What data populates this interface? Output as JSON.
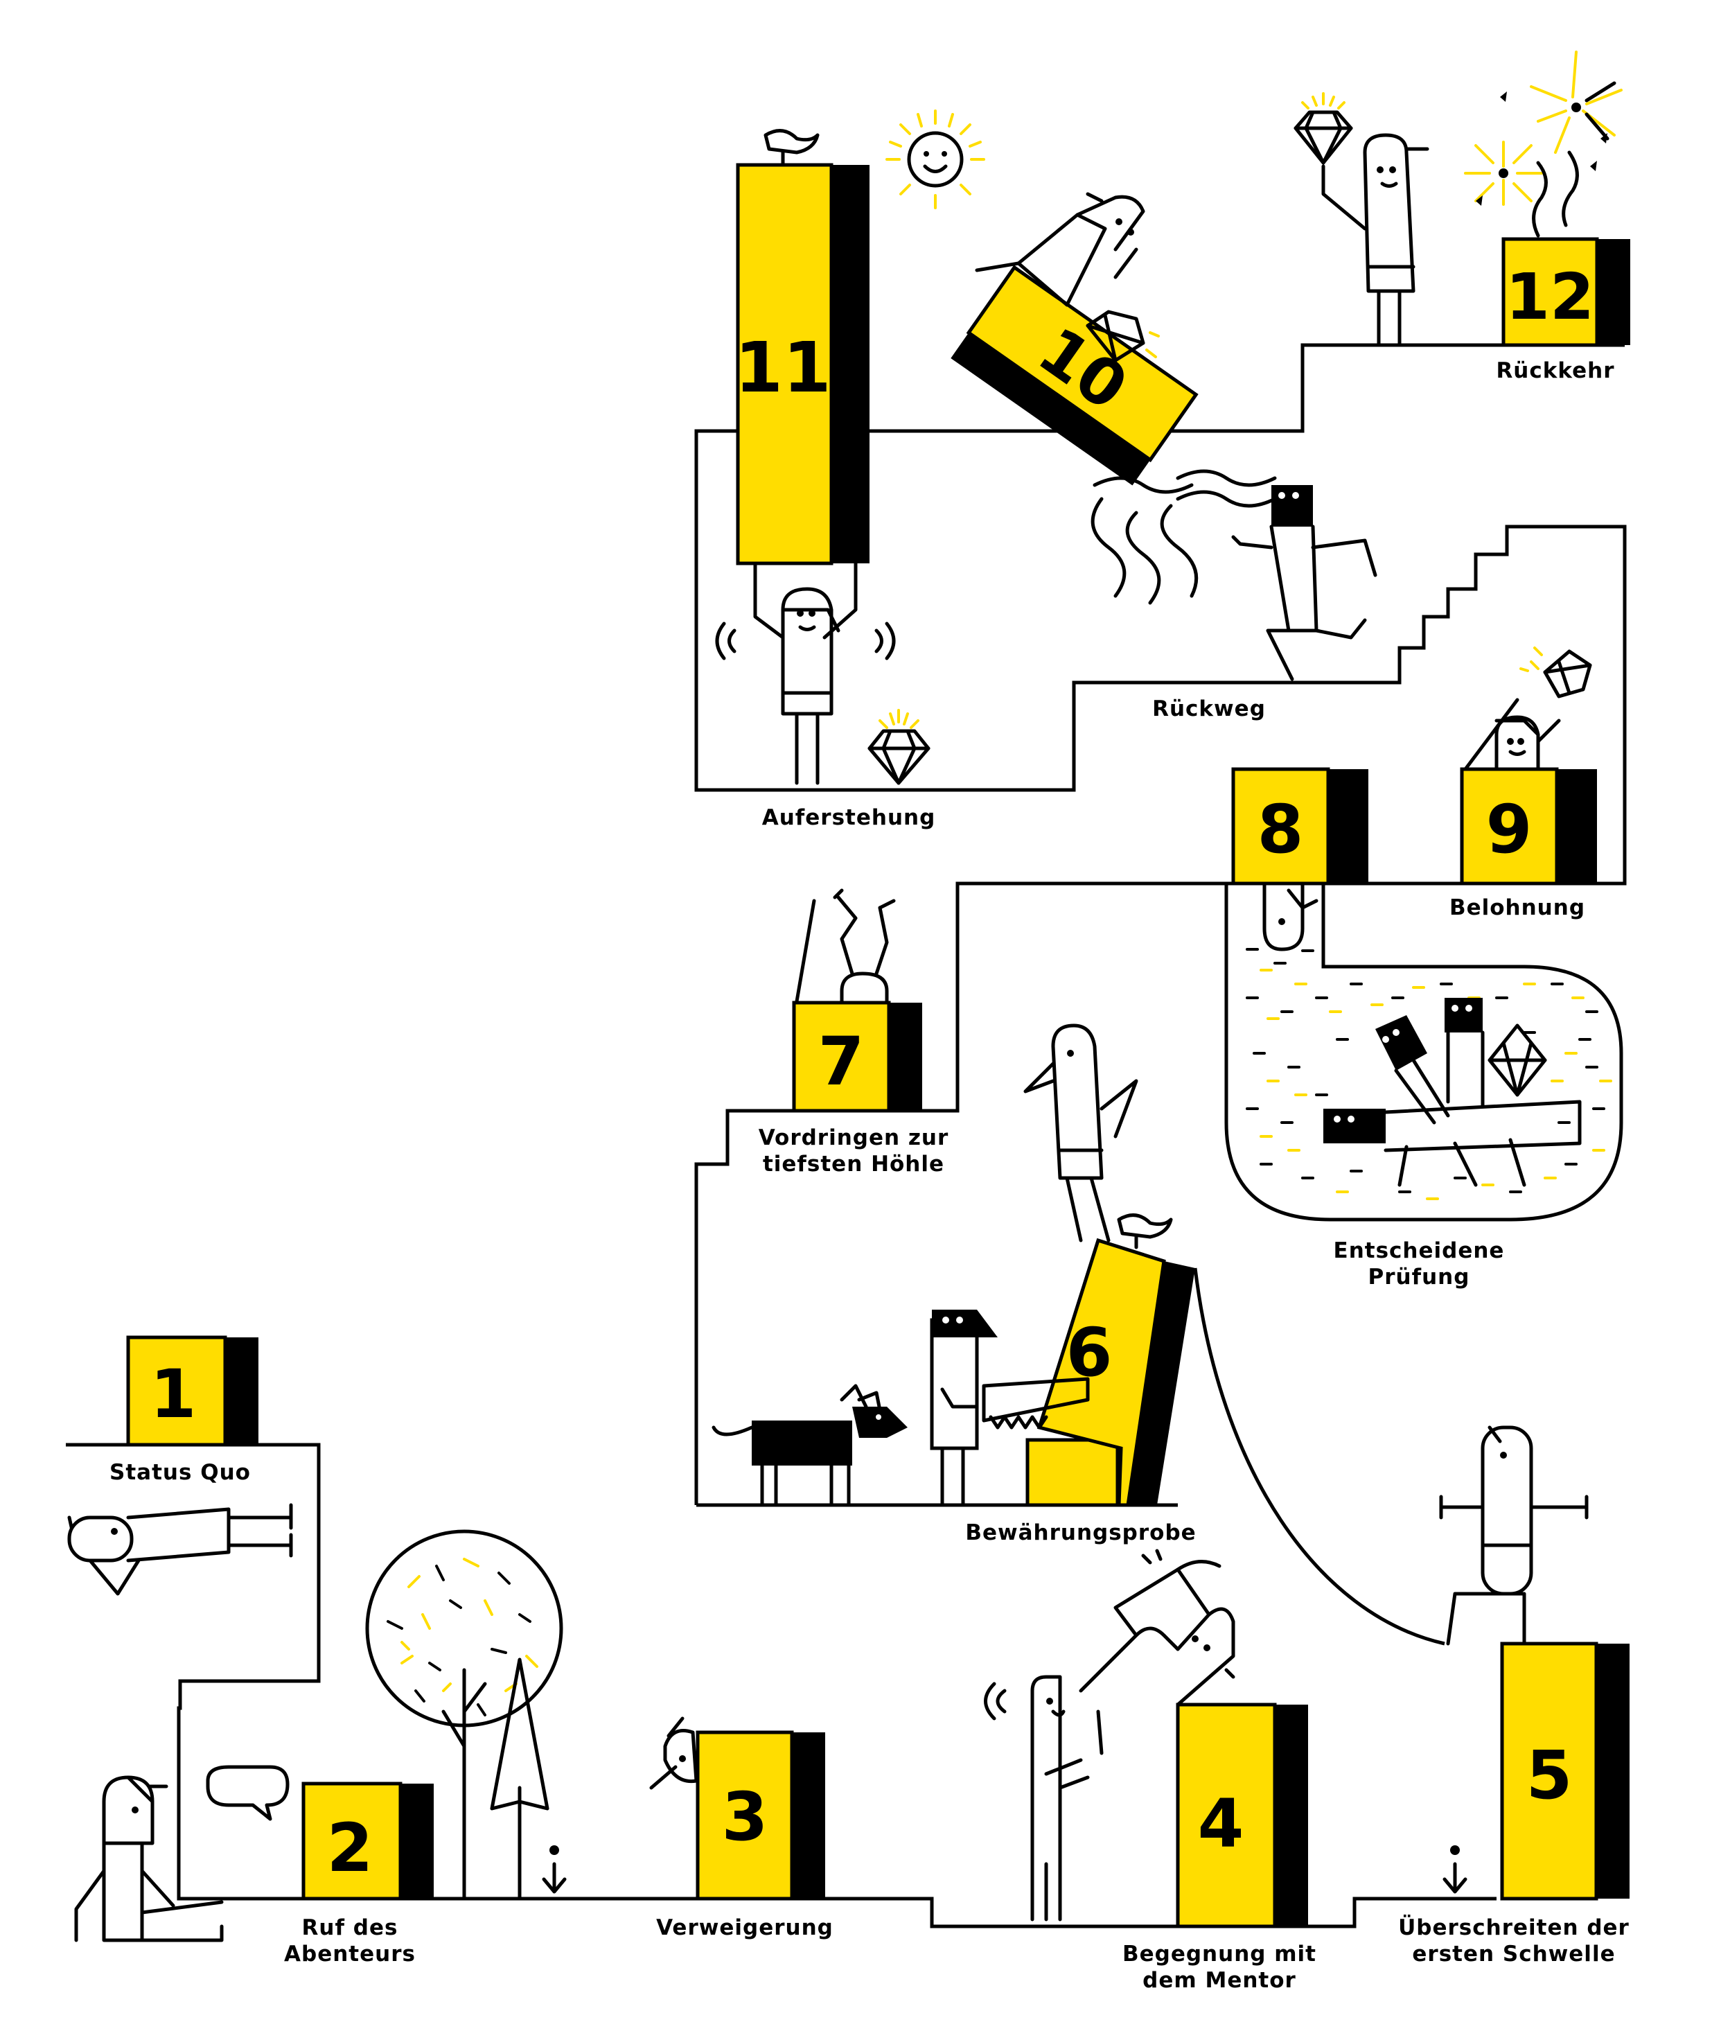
{
  "stages": [
    {
      "number": "1",
      "label_lines": [
        "Status Quo"
      ]
    },
    {
      "number": "2",
      "label_lines": [
        "Ruf des",
        "Abenteurs"
      ]
    },
    {
      "number": "3",
      "label_lines": [
        "Verweigerung"
      ]
    },
    {
      "number": "4",
      "label_lines": [
        "Begegnung mit",
        "dem Mentor"
      ]
    },
    {
      "number": "5",
      "label_lines": [
        "Überschreiten der",
        "ersten Schwelle"
      ]
    },
    {
      "number": "6",
      "label_lines": [
        "Bewährungsprobe"
      ]
    },
    {
      "number": "7",
      "label_lines": [
        "Vordringen zur",
        "tiefsten Höhle"
      ]
    },
    {
      "number": "8",
      "label_lines": [
        "Entscheidene",
        "Prüfung"
      ]
    },
    {
      "number": "9",
      "label_lines": [
        "Belohnung"
      ]
    },
    {
      "number": "10",
      "label_lines": [
        "Rückweg"
      ]
    },
    {
      "number": "11",
      "label_lines": [
        "Auferstehung"
      ]
    },
    {
      "number": "12",
      "label_lines": [
        "Rückkehr"
      ]
    }
  ],
  "colors": {
    "accent": "#ffdd00",
    "ink": "#000000",
    "background": "#ffffff"
  }
}
